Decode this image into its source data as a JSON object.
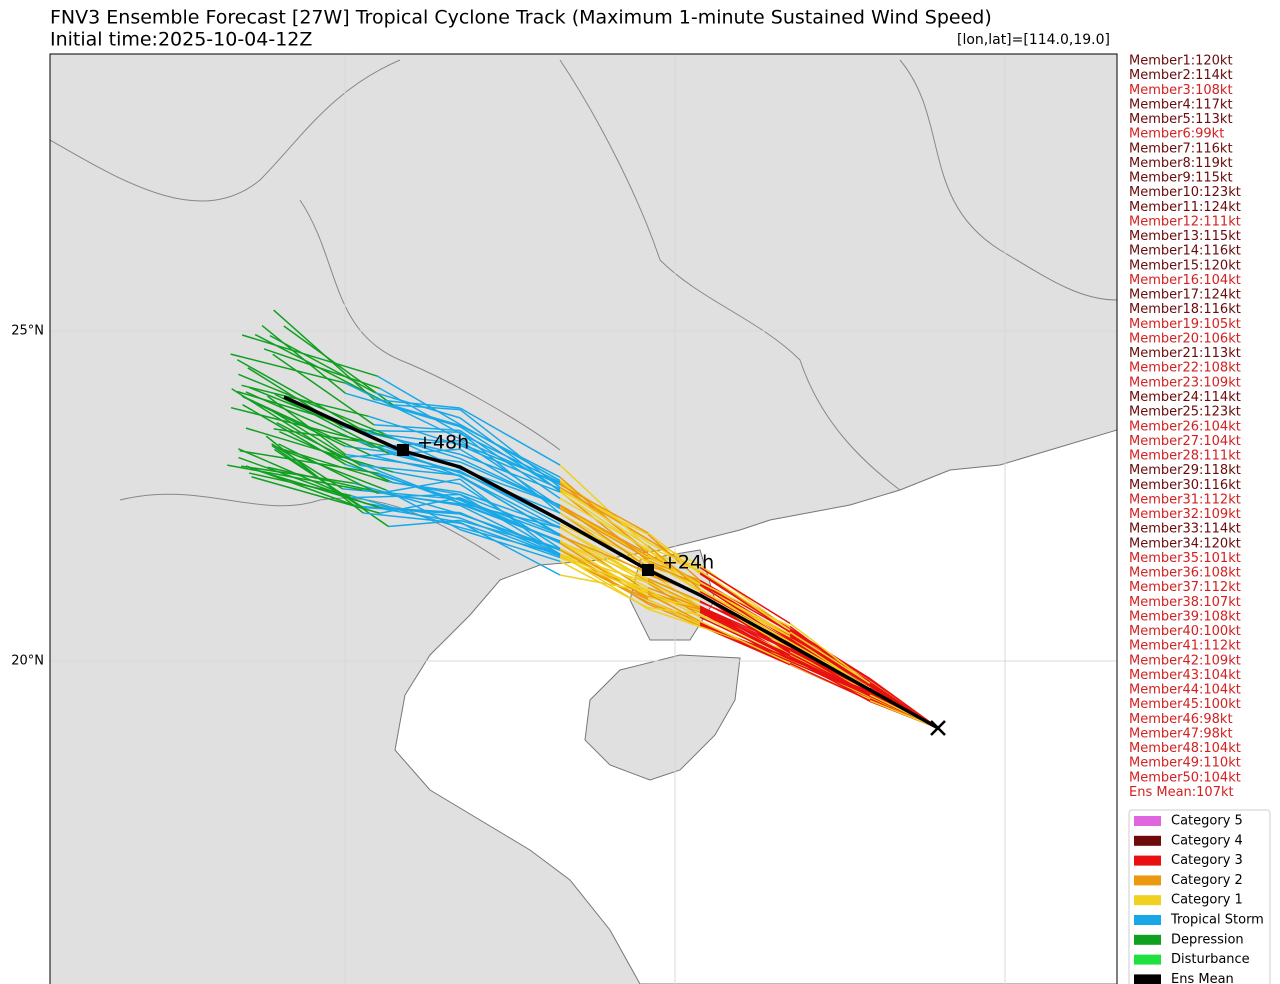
{
  "header": {
    "title": "FNV3 Ensemble Forecast [27W] Tropical Cyclone Track (Maximum 1-minute Sustained Wind Speed)",
    "initial_time": "Initial time:2025-10-04-12Z",
    "location": "[lon,lat]=[114.0,19.0]"
  },
  "map": {
    "lat_labels": [
      "25°N",
      "20°N"
    ],
    "time_labels": [
      "+48h",
      "+24h"
    ]
  },
  "members": [
    {
      "text": "Member1:120kt",
      "color": "#6a0a0a"
    },
    {
      "text": "Member2:114kt",
      "color": "#6a0a0a"
    },
    {
      "text": "Member3:108kt",
      "color": "#d42020"
    },
    {
      "text": "Member4:117kt",
      "color": "#6a0a0a"
    },
    {
      "text": "Member5:113kt",
      "color": "#6a0a0a"
    },
    {
      "text": "Member6:99kt",
      "color": "#d42020"
    },
    {
      "text": "Member7:116kt",
      "color": "#6a0a0a"
    },
    {
      "text": "Member8:119kt",
      "color": "#6a0a0a"
    },
    {
      "text": "Member9:115kt",
      "color": "#6a0a0a"
    },
    {
      "text": "Member10:123kt",
      "color": "#6a0a0a"
    },
    {
      "text": "Member11:124kt",
      "color": "#6a0a0a"
    },
    {
      "text": "Member12:111kt",
      "color": "#d42020"
    },
    {
      "text": "Member13:115kt",
      "color": "#6a0a0a"
    },
    {
      "text": "Member14:116kt",
      "color": "#6a0a0a"
    },
    {
      "text": "Member15:120kt",
      "color": "#6a0a0a"
    },
    {
      "text": "Member16:104kt",
      "color": "#d42020"
    },
    {
      "text": "Member17:124kt",
      "color": "#6a0a0a"
    },
    {
      "text": "Member18:116kt",
      "color": "#6a0a0a"
    },
    {
      "text": "Member19:105kt",
      "color": "#d42020"
    },
    {
      "text": "Member20:106kt",
      "color": "#d42020"
    },
    {
      "text": "Member21:113kt",
      "color": "#6a0a0a"
    },
    {
      "text": "Member22:108kt",
      "color": "#d42020"
    },
    {
      "text": "Member23:109kt",
      "color": "#d42020"
    },
    {
      "text": "Member24:114kt",
      "color": "#6a0a0a"
    },
    {
      "text": "Member25:123kt",
      "color": "#6a0a0a"
    },
    {
      "text": "Member26:104kt",
      "color": "#d42020"
    },
    {
      "text": "Member27:104kt",
      "color": "#d42020"
    },
    {
      "text": "Member28:111kt",
      "color": "#d42020"
    },
    {
      "text": "Member29:118kt",
      "color": "#6a0a0a"
    },
    {
      "text": "Member30:116kt",
      "color": "#6a0a0a"
    },
    {
      "text": "Member31:112kt",
      "color": "#d42020"
    },
    {
      "text": "Member32:109kt",
      "color": "#d42020"
    },
    {
      "text": "Member33:114kt",
      "color": "#6a0a0a"
    },
    {
      "text": "Member34:120kt",
      "color": "#6a0a0a"
    },
    {
      "text": "Member35:101kt",
      "color": "#d42020"
    },
    {
      "text": "Member36:108kt",
      "color": "#d42020"
    },
    {
      "text": "Member37:112kt",
      "color": "#d42020"
    },
    {
      "text": "Member38:107kt",
      "color": "#d42020"
    },
    {
      "text": "Member39:108kt",
      "color": "#d42020"
    },
    {
      "text": "Member40:100kt",
      "color": "#d42020"
    },
    {
      "text": "Member41:112kt",
      "color": "#d42020"
    },
    {
      "text": "Member42:109kt",
      "color": "#d42020"
    },
    {
      "text": "Member43:104kt",
      "color": "#d42020"
    },
    {
      "text": "Member44:104kt",
      "color": "#d42020"
    },
    {
      "text": "Member45:100kt",
      "color": "#d42020"
    },
    {
      "text": "Member46:98kt",
      "color": "#d42020"
    },
    {
      "text": "Member47:98kt",
      "color": "#d42020"
    },
    {
      "text": "Member48:104kt",
      "color": "#d42020"
    },
    {
      "text": "Member49:110kt",
      "color": "#d42020"
    },
    {
      "text": "Member50:104kt",
      "color": "#d42020"
    }
  ],
  "ens_mean": {
    "text": "Ens Mean:107kt",
    "color": "#d42020"
  },
  "legend": [
    {
      "name": "Category 5",
      "color": "#e066e0"
    },
    {
      "name": "Category 4",
      "color": "#6e0a0a"
    },
    {
      "name": "Category 3",
      "color": "#e81010"
    },
    {
      "name": "Category 2",
      "color": "#eb9a10"
    },
    {
      "name": "Category 1",
      "color": "#f0d020"
    },
    {
      "name": "Tropical Storm",
      "color": "#18a8e8"
    },
    {
      "name": "Depression",
      "color": "#10a020"
    },
    {
      "name": "Disturbance",
      "color": "#20e040"
    },
    {
      "name": "Ens Mean",
      "color": "#000000"
    }
  ]
}
